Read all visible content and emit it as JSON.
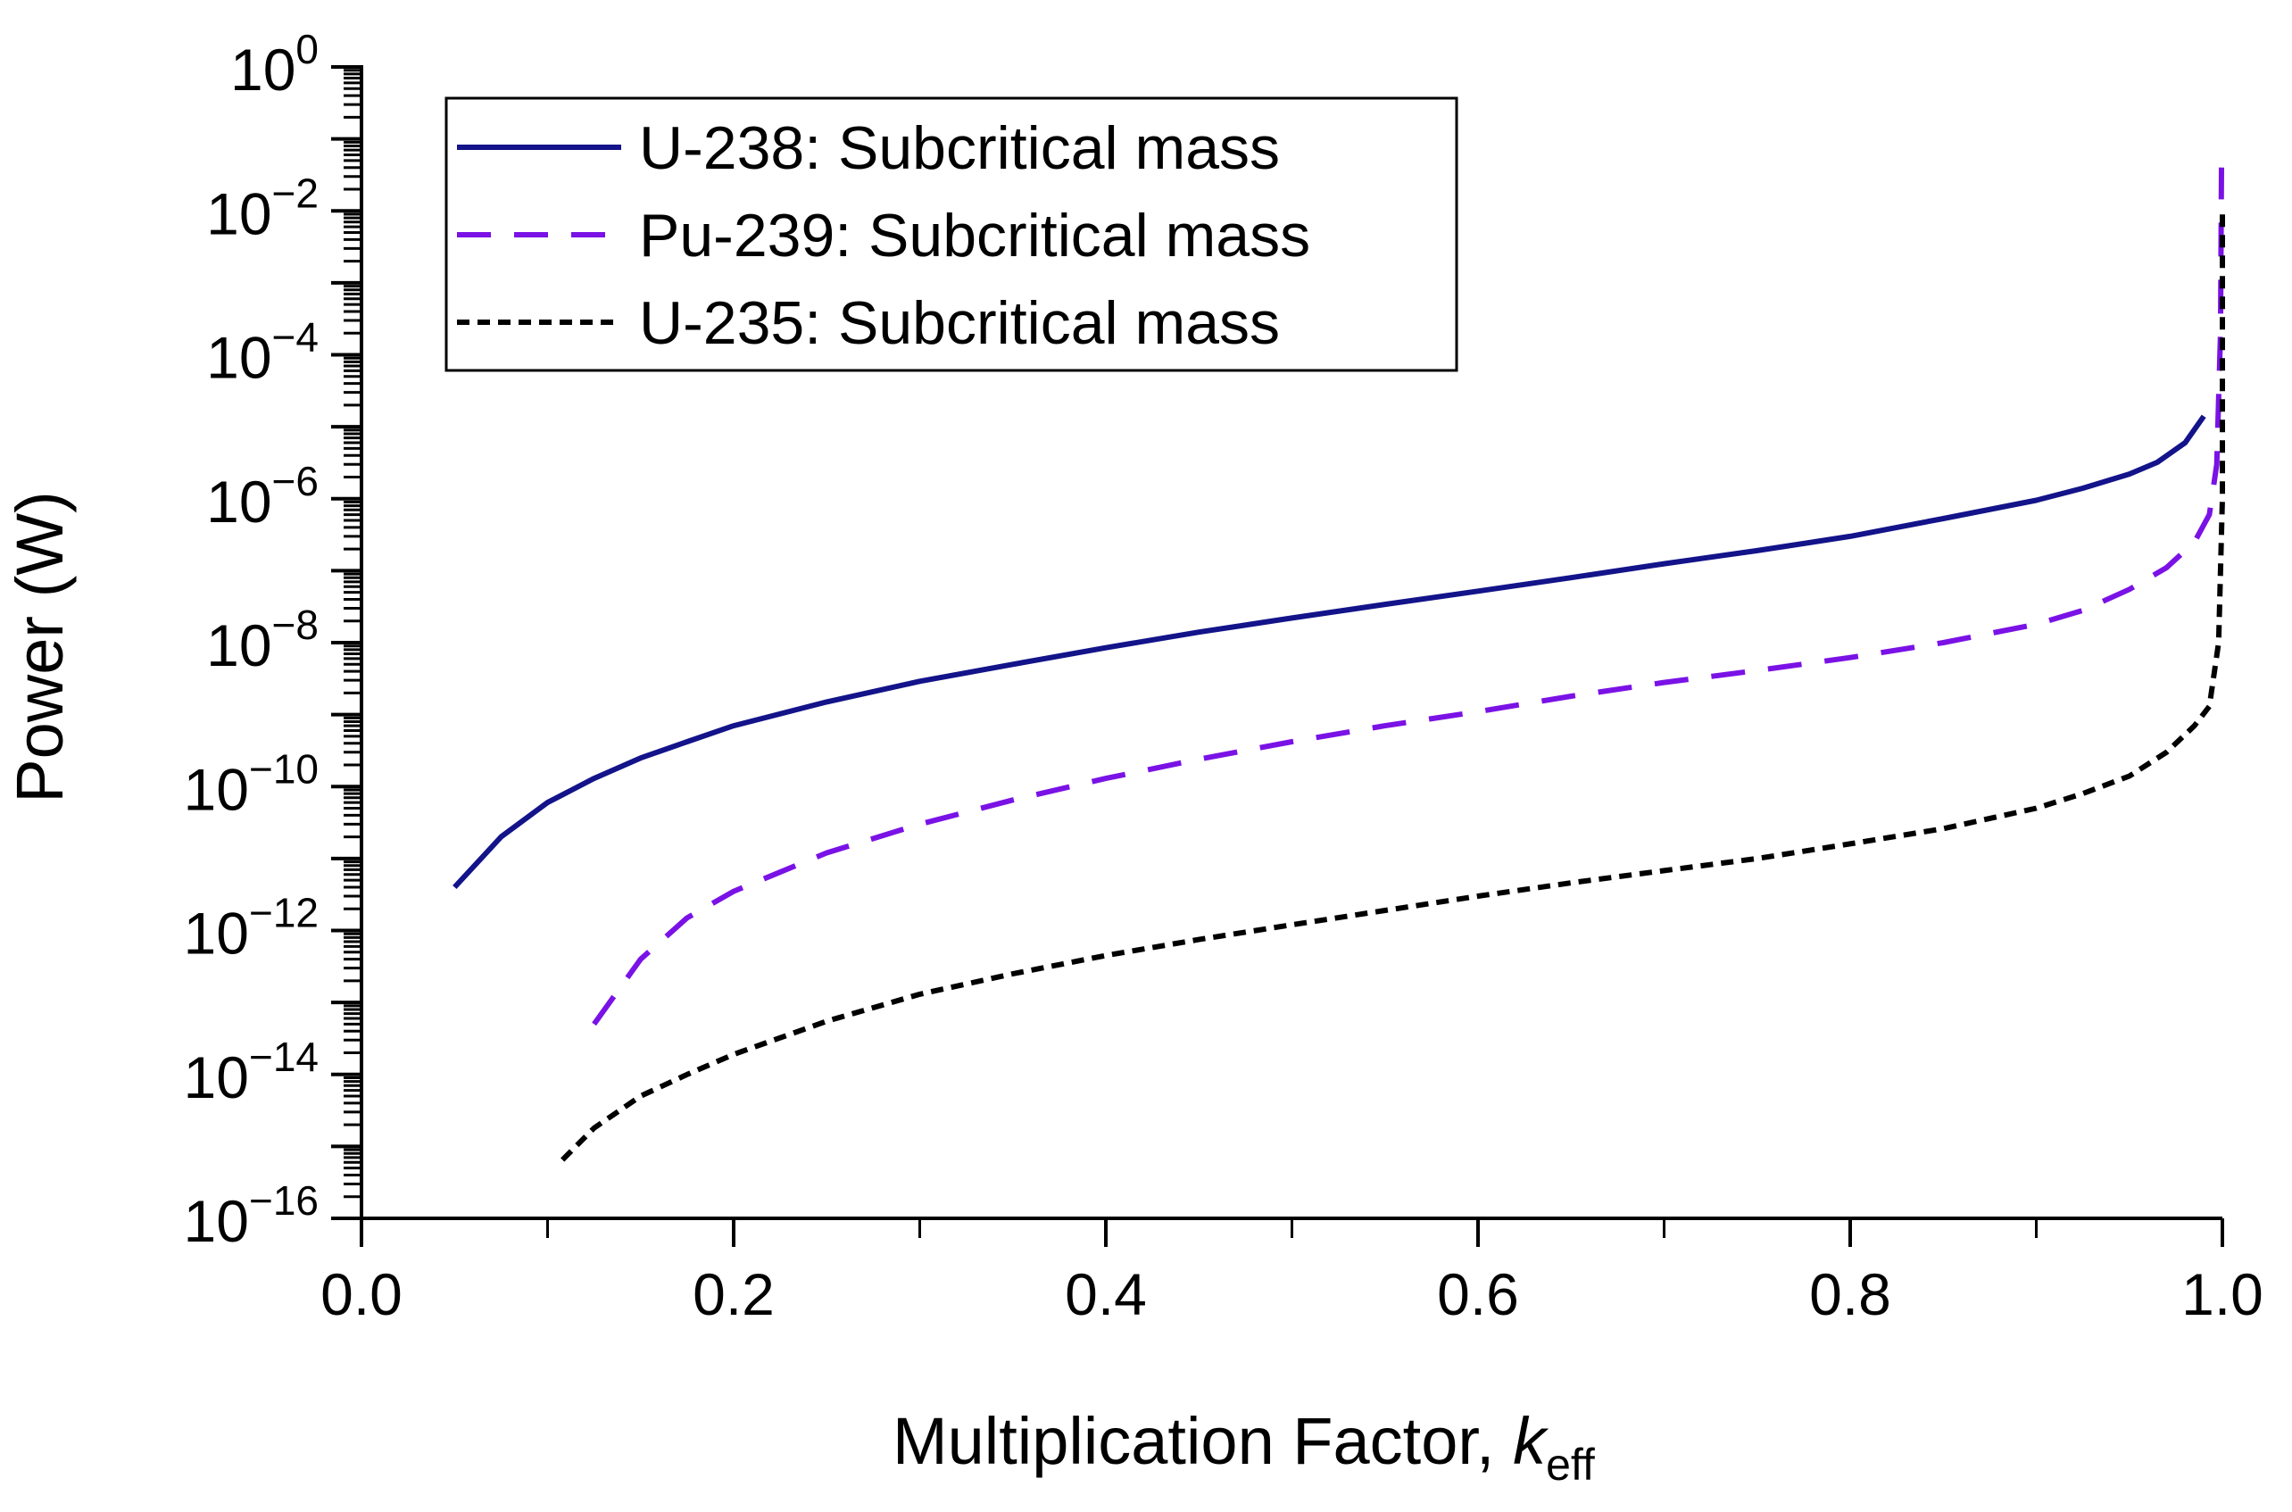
{
  "chart_data": {
    "type": "line",
    "title": "",
    "xlabel": "Multiplication Factor, ",
    "xlabel_italic": "k",
    "xlabel_sub": "eff",
    "ylabel": "Power (W)",
    "xlim": [
      0.0,
      1.0
    ],
    "ylim_exponent": [
      -16,
      0
    ],
    "y_scale": "log",
    "x_ticks": [
      "0.0",
      "0.2",
      "0.4",
      "0.6",
      "0.8",
      "1.0"
    ],
    "y_tick_base": "10",
    "y_tick_exponents": [
      "0",
      "−2",
      "−4",
      "−6",
      "−8",
      "−10",
      "−12",
      "−14",
      "−16"
    ],
    "legend_position": "top-left",
    "series": [
      {
        "name": "U-238: Subcritical mass",
        "color": "#13138a",
        "style": "solid",
        "x": [
          0.05,
          0.075,
          0.1,
          0.125,
          0.15,
          0.175,
          0.2,
          0.25,
          0.3,
          0.35,
          0.4,
          0.45,
          0.5,
          0.55,
          0.6,
          0.65,
          0.7,
          0.75,
          0.8,
          0.85,
          0.9,
          0.925,
          0.95,
          0.965,
          0.98,
          0.99
        ],
        "y": [
          4e-12,
          2e-11,
          6e-11,
          1.3e-10,
          2.5e-10,
          4.2e-10,
          7e-10,
          1.5e-09,
          2.9e-09,
          5e-09,
          8.5e-09,
          1.4e-08,
          2.2e-08,
          3.4e-08,
          5.2e-08,
          8e-08,
          1.25e-07,
          1.9e-07,
          3e-07,
          5.3e-07,
          9.5e-07,
          1.4e-06,
          2.2e-06,
          3.2e-06,
          6e-06,
          1.4e-05
        ]
      },
      {
        "name": "Pu-239: Subcritical mass",
        "color": "#7a12e6",
        "style": "dashed",
        "x": [
          0.125,
          0.15,
          0.175,
          0.2,
          0.25,
          0.3,
          0.35,
          0.4,
          0.45,
          0.5,
          0.55,
          0.6,
          0.65,
          0.7,
          0.75,
          0.8,
          0.85,
          0.9,
          0.925,
          0.95,
          0.97,
          0.985,
          0.993,
          0.997,
          0.999,
          0.9995
        ],
        "y": [
          5e-14,
          4e-13,
          1.5e-12,
          3.5e-12,
          1.2e-11,
          3e-11,
          6.5e-11,
          1.3e-10,
          2.4e-10,
          4.2e-10,
          7e-10,
          1.1e-09,
          1.8e-09,
          2.8e-09,
          4.1e-09,
          6.2e-09,
          1e-08,
          1.8e-08,
          2.8e-08,
          5.5e-08,
          1.1e-07,
          2.5e-07,
          6e-07,
          3e-06,
          0.0002,
          0.04
        ]
      },
      {
        "name": "U-235: Subcritical mass",
        "color": "#000000",
        "style": "dotted",
        "x": [
          0.108,
          0.125,
          0.15,
          0.175,
          0.2,
          0.25,
          0.3,
          0.35,
          0.4,
          0.45,
          0.5,
          0.55,
          0.6,
          0.65,
          0.7,
          0.75,
          0.8,
          0.85,
          0.9,
          0.925,
          0.95,
          0.97,
          0.985,
          0.993,
          0.998,
          1.0,
          1.0
        ],
        "y": [
          6.5e-16,
          1.8e-15,
          5e-15,
          1e-14,
          1.9e-14,
          5.5e-14,
          1.3e-13,
          2.5e-13,
          4.5e-13,
          7.5e-13,
          1.2e-12,
          1.9e-12,
          3e-12,
          4.6e-12,
          6.8e-12,
          1e-11,
          1.6e-11,
          2.6e-11,
          5e-11,
          8e-11,
          1.4e-10,
          3e-10,
          7e-10,
          1.3e-09,
          1e-08,
          1e-06,
          0.01
        ]
      }
    ]
  }
}
